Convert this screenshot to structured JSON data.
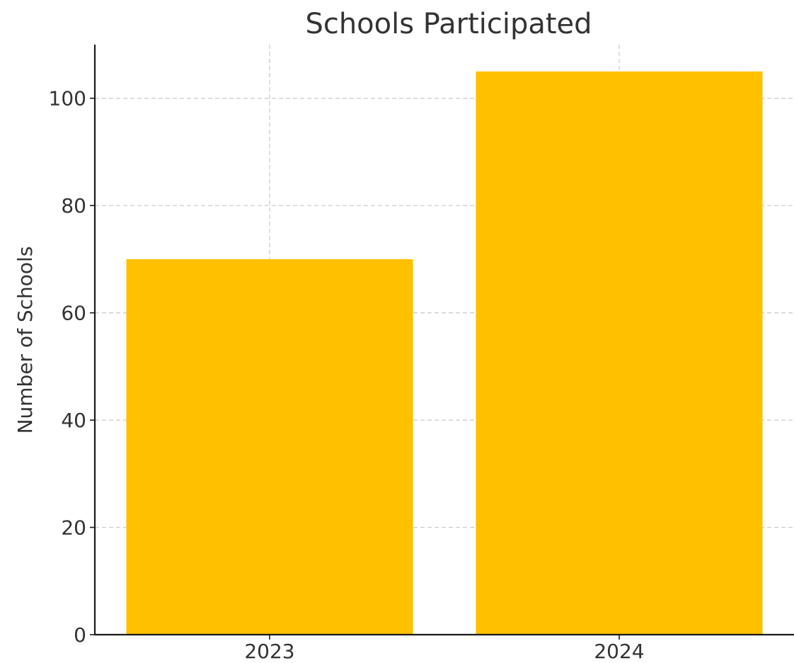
{
  "chart_data": {
    "type": "bar",
    "title": "Schools Participated",
    "xlabel": "",
    "ylabel": "Number of Schools",
    "categories": [
      "2023",
      "2024"
    ],
    "values": [
      70,
      105
    ],
    "ylim": [
      0,
      110
    ],
    "yticks": [
      0,
      20,
      40,
      60,
      80,
      100
    ],
    "grid": true,
    "bar_color": "#FFC000"
  }
}
